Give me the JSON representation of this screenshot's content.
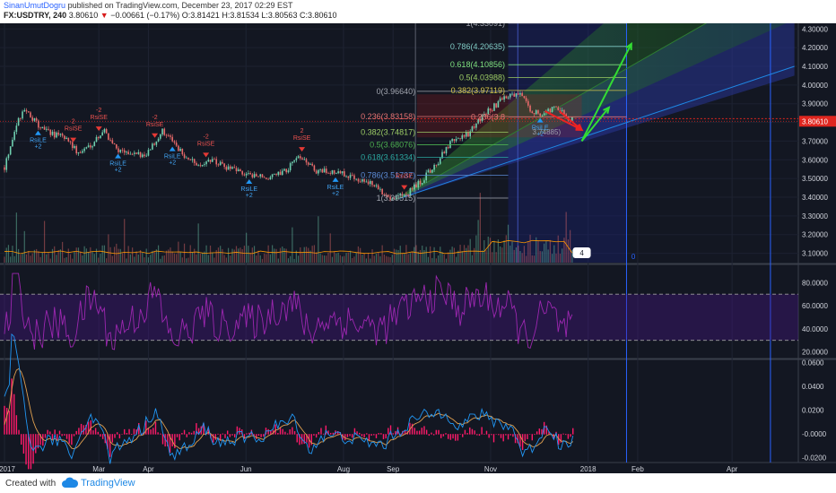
{
  "header": {
    "author": "SinanUmutDogru",
    "published_text": "published on TradingView.com, December 23, 2017 02:29 EST",
    "symbol": "FX:USDTRY, 240",
    "last": "3.80610",
    "change_arrow": "▼",
    "change": "−0.00661 (−0.17%)",
    "open": "O:3.81421",
    "high": "H:3.81534",
    "low": "L:3.80563",
    "close": "C:3.80610"
  },
  "footer": {
    "created_with": "Created with",
    "brand": "TradingView",
    "logo_icon": "tradingview-cloud-icon"
  },
  "colors": {
    "background": "#131722",
    "up": "#6fd0b0",
    "down": "#e86a6a",
    "rsi": "#9c27b0",
    "macd_line": "#2196f3",
    "signal_line": "#e0a050",
    "histogram": "#ff1a6a",
    "arrow_up": "#33dd33",
    "arrow_down": "#ee2222",
    "price_tag": "#e0261f"
  },
  "chart_data": [
    {
      "type": "candlestick",
      "panel": "price",
      "ylim": [
        3.05,
        4.33
      ],
      "y_ticks": [
        "4.30000",
        "4.20000",
        "4.10000",
        "4.00000",
        "3.90000",
        "3.80000",
        "3.70000",
        "3.60000",
        "3.50000",
        "3.40000",
        "3.30000",
        "3.20000",
        "3.10000"
      ],
      "last_price_label": "3.80610",
      "price_path": [
        {
          "date": "2017-01-01",
          "price": 3.56
        },
        {
          "date": "2017-01-08",
          "price": 3.78
        },
        {
          "date": "2017-01-14",
          "price": 3.88
        },
        {
          "date": "2017-01-22",
          "price": 3.78
        },
        {
          "date": "2017-01-31",
          "price": 3.74
        },
        {
          "date": "2017-02-10",
          "price": 3.71
        },
        {
          "date": "2017-02-16",
          "price": 3.63
        },
        {
          "date": "2017-02-25",
          "price": 3.69
        },
        {
          "date": "2017-03-04",
          "price": 3.76
        },
        {
          "date": "2017-03-12",
          "price": 3.66
        },
        {
          "date": "2017-03-22",
          "price": 3.62
        },
        {
          "date": "2017-04-01",
          "price": 3.64
        },
        {
          "date": "2017-04-10",
          "price": 3.76
        },
        {
          "date": "2017-04-20",
          "price": 3.65
        },
        {
          "date": "2017-05-01",
          "price": 3.57
        },
        {
          "date": "2017-05-10",
          "price": 3.6
        },
        {
          "date": "2017-05-21",
          "price": 3.55
        },
        {
          "date": "2017-06-03",
          "price": 3.52
        },
        {
          "date": "2017-06-15",
          "price": 3.5
        },
        {
          "date": "2017-06-25",
          "price": 3.54
        },
        {
          "date": "2017-07-06",
          "price": 3.62
        },
        {
          "date": "2017-07-15",
          "price": 3.54
        },
        {
          "date": "2017-07-27",
          "price": 3.53
        },
        {
          "date": "2017-08-08",
          "price": 3.51
        },
        {
          "date": "2017-08-18",
          "price": 3.47
        },
        {
          "date": "2017-08-31",
          "price": 3.4
        },
        {
          "date": "2017-09-10",
          "price": 3.42
        },
        {
          "date": "2017-09-19",
          "price": 3.49
        },
        {
          "date": "2017-09-28",
          "price": 3.58
        },
        {
          "date": "2017-10-08",
          "price": 3.7
        },
        {
          "date": "2017-10-18",
          "price": 3.74
        },
        {
          "date": "2017-10-29",
          "price": 3.85
        },
        {
          "date": "2017-11-08",
          "price": 3.92
        },
        {
          "date": "2017-11-18",
          "price": 3.96
        },
        {
          "date": "2017-11-26",
          "price": 3.87
        },
        {
          "date": "2017-12-04",
          "price": 3.84
        },
        {
          "date": "2017-12-10",
          "price": 3.88
        },
        {
          "date": "2017-12-16",
          "price": 3.85
        },
        {
          "date": "2017-12-23",
          "price": 3.806
        }
      ],
      "fib_retracement": [
        {
          "label": "1(3.39515)",
          "value": 3.39515
        },
        {
          "label": "0.786(3.51737)",
          "value": 3.51737
        },
        {
          "label": "0.618(3.61334)",
          "value": 3.61334
        },
        {
          "label": "0.5(3.68076)",
          "value": 3.68076
        },
        {
          "label": "0.382(3.74817)",
          "value": 3.74817
        },
        {
          "label": "0.236(3.83158)",
          "value": 3.83158
        },
        {
          "label": "0(3.96640)",
          "value": 3.9664
        }
      ],
      "fib_extension": [
        {
          "label": "0.236(3.8",
          "value": 3.83
        },
        {
          "label": "0.382(3.97119)",
          "value": 3.97119
        },
        {
          "label": "0.5(4.03988)",
          "value": 4.03988
        },
        {
          "label": "0.618(4.10856)",
          "value": 4.10856
        },
        {
          "label": "0.786(4.20635)",
          "value": 4.20635
        },
        {
          "label": "1(4.33091)",
          "value": 4.33091
        }
      ],
      "partial_label": "3.74885)",
      "signals": [
        {
          "kind": "RsiLE",
          "label": "RsiLE",
          "sub": "+2",
          "date": "2017-01-22"
        },
        {
          "kind": "RsiSE",
          "label": "RsiSE",
          "sub": "2",
          "date": "2017-02-13"
        },
        {
          "kind": "RsiSE",
          "label": "RsiSE",
          "sub": "-2",
          "date": "2017-03-01"
        },
        {
          "kind": "RsiLE",
          "label": "RsiLE",
          "sub": "+2",
          "date": "2017-03-13"
        },
        {
          "kind": "RsiSE",
          "label": "RsiSE",
          "sub": "-2",
          "date": "2017-04-05"
        },
        {
          "kind": "RsiLE",
          "label": "RsiLE",
          "sub": "+2",
          "date": "2017-04-16"
        },
        {
          "kind": "RsiSE",
          "label": "RsiSE",
          "sub": "-2",
          "date": "2017-05-07"
        },
        {
          "kind": "RsiLE",
          "label": "RsiLE",
          "sub": "+2",
          "date": "2017-06-03"
        },
        {
          "kind": "RsiSE",
          "label": "RsiSE",
          "sub": "2",
          "date": "2017-07-06"
        },
        {
          "kind": "RsiLE",
          "label": "RsiLE",
          "sub": "+2",
          "date": "2017-07-27"
        },
        {
          "kind": "RsiSE",
          "label": "RsiSE",
          "sub": "",
          "date": "2017-09-08"
        },
        {
          "kind": "RsiLE",
          "label": "RsiLE",
          "sub": "+2",
          "date": "2017-12-02"
        }
      ],
      "volume_label_badge": "4",
      "right_marker": "0"
    },
    {
      "type": "line",
      "panel": "rsi",
      "ylim": [
        15,
        95
      ],
      "y_ticks": [
        "80.0000",
        "60.0000",
        "40.0000",
        "20.0000"
      ],
      "bands": [
        70,
        30
      ]
    },
    {
      "type": "line",
      "panel": "macd",
      "ylim": [
        -0.024,
        0.062
      ],
      "y_ticks": [
        "0.0600",
        "0.0400",
        "0.0200",
        "-0.0000",
        "-0.0200"
      ]
    }
  ],
  "x_axis": {
    "labels": [
      {
        "text": "2017",
        "date": "2017-01-01"
      },
      {
        "text": "Mar",
        "date": "2017-03-01"
      },
      {
        "text": "Apr",
        "date": "2017-04-01"
      },
      {
        "text": "Jun",
        "date": "2017-06-01"
      },
      {
        "text": "Aug",
        "date": "2017-08-01"
      },
      {
        "text": "Sep",
        "date": "2017-09-01"
      },
      {
        "text": "Nov",
        "date": "2017-11-01"
      },
      {
        "text": "2018",
        "date": "2018-01-01"
      },
      {
        "text": "Feb",
        "date": "2018-02-01"
      },
      {
        "text": "Apr",
        "date": "2018-04-01"
      }
    ]
  }
}
